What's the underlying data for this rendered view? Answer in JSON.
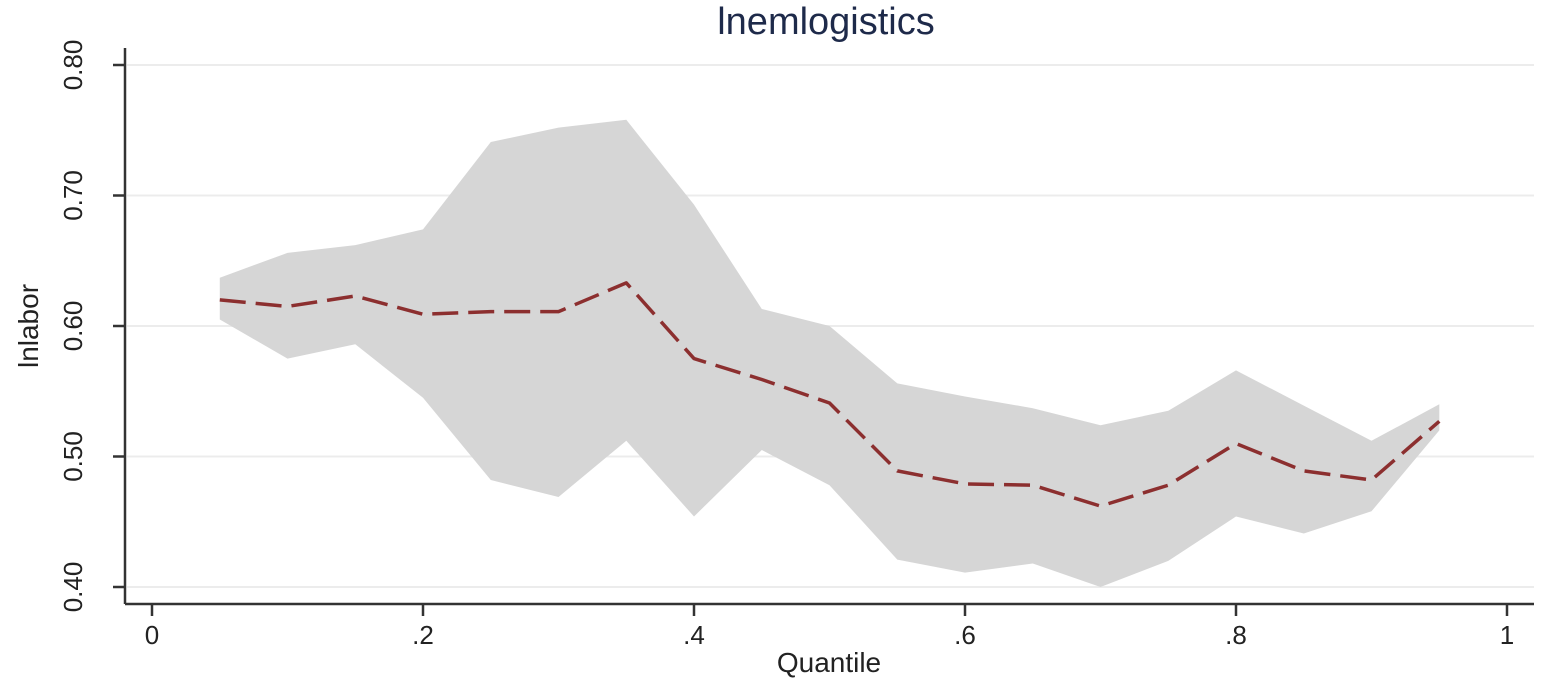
{
  "chart_data": {
    "type": "line",
    "title": "lnemlogistics",
    "xlabel": "Quantile",
    "ylabel": "lnlabor",
    "xlim": [
      0,
      1
    ],
    "ylim": [
      0.4,
      0.8
    ],
    "xticks": [
      {
        "value": 0,
        "label": "0"
      },
      {
        "value": 0.2,
        "label": ".2"
      },
      {
        "value": 0.4,
        "label": ".4"
      },
      {
        "value": 0.6,
        "label": ".6"
      },
      {
        "value": 0.8,
        "label": ".8"
      },
      {
        "value": 1,
        "label": "1"
      }
    ],
    "yticks": [
      {
        "value": 0.4,
        "label": "0.40"
      },
      {
        "value": 0.5,
        "label": "0.50"
      },
      {
        "value": 0.6,
        "label": "0.60"
      },
      {
        "value": 0.7,
        "label": "0.70"
      },
      {
        "value": 0.8,
        "label": "0.80"
      }
    ],
    "grid": true,
    "x": [
      0.05,
      0.1,
      0.15,
      0.2,
      0.25,
      0.3,
      0.35,
      0.4,
      0.45,
      0.5,
      0.55,
      0.6,
      0.65,
      0.7,
      0.75,
      0.8,
      0.85,
      0.9,
      0.95
    ],
    "series": [
      {
        "values": [
          0.62,
          0.615,
          0.623,
          0.609,
          0.611,
          0.611,
          0.633,
          0.575,
          0.559,
          0.541,
          0.489,
          0.479,
          0.478,
          0.462,
          0.478,
          0.51,
          0.489,
          0.482,
          0.527
        ]
      }
    ],
    "band": {
      "lower": [
        0.605,
        0.575,
        0.586,
        0.545,
        0.482,
        0.469,
        0.512,
        0.454,
        0.505,
        0.478,
        0.421,
        0.411,
        0.418,
        0.4,
        0.42,
        0.454,
        0.441,
        0.458,
        0.52
      ],
      "upper": [
        0.637,
        0.656,
        0.662,
        0.674,
        0.741,
        0.752,
        0.758,
        0.693,
        0.613,
        0.6,
        0.556,
        0.546,
        0.537,
        0.524,
        0.535,
        0.566,
        0.539,
        0.512,
        0.54
      ]
    },
    "colors": {
      "line": "#8c2f2f",
      "band": "#d6d6d6",
      "grid": "#ececec",
      "axis": "#333333",
      "title": "#1e2a4a"
    }
  }
}
